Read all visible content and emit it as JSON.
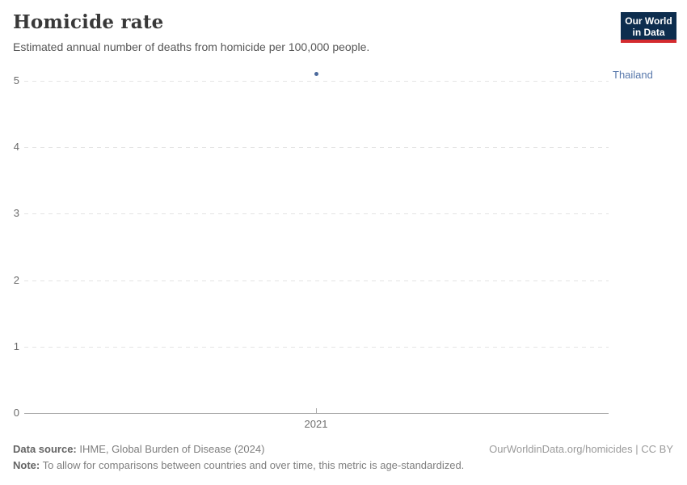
{
  "header": {
    "title": "Homicide rate",
    "subtitle": "Estimated annual number of deaths from homicide per 100,000 people."
  },
  "logo": {
    "line1": "Our World",
    "line2": "in Data",
    "bg_color": "#0d2d4e",
    "accent_color": "#d42b2f"
  },
  "chart_data": {
    "type": "scatter",
    "title": "Homicide rate",
    "subtitle": "Estimated annual number of deaths from homicide per 100,000 people.",
    "series": [
      {
        "name": "Thailand",
        "color": "#4c6a9c",
        "points": [
          {
            "x": 2021,
            "y": 5.1
          }
        ]
      }
    ],
    "categories": [
      2021
    ],
    "xticks": [
      "2021"
    ],
    "yticks": [
      0,
      1,
      2,
      3,
      4,
      5
    ],
    "ylim": [
      0,
      5.3
    ],
    "xlabel": "",
    "ylabel": "",
    "grid": "dashed-horizontal",
    "legend_position": "entity-label-right"
  },
  "footer": {
    "datasource_label": "Data source:",
    "datasource_text": " IHME, Global Burden of Disease (2024)",
    "note_label": "Note:",
    "note_text": " To allow for comparisons between countries and over time, this metric is age-standardized.",
    "link_text": "OurWorldinData.org/homicides | CC BY"
  }
}
